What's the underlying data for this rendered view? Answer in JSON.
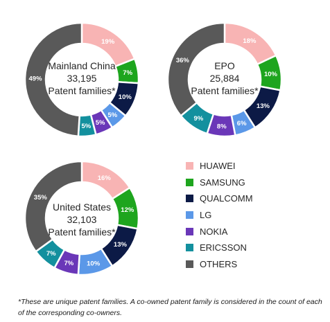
{
  "chart_data": [
    {
      "type": "pie",
      "title": "Mainland China",
      "total_value": "33,195",
      "total_unit": "Patent families*",
      "categories": [
        "HUAWEI",
        "SAMSUNG",
        "QUALCOMM",
        "LG",
        "NOKIA",
        "ERICSSON",
        "OTHERS"
      ],
      "values": [
        19,
        7,
        10,
        5,
        5,
        5,
        49
      ],
      "value_labels": [
        "19%",
        "7%",
        "10%",
        "5%",
        "5%",
        "5%",
        "49%"
      ]
    },
    {
      "type": "pie",
      "title": "EPO",
      "total_value": "25,884",
      "total_unit": "Patent families*",
      "categories": [
        "HUAWEI",
        "SAMSUNG",
        "QUALCOMM",
        "LG",
        "NOKIA",
        "ERICSSON",
        "OTHERS"
      ],
      "values": [
        18,
        10,
        13,
        6,
        8,
        9,
        36
      ],
      "value_labels": [
        "18%",
        "10%",
        "13%",
        "6%",
        "8%",
        "9%",
        "36%"
      ]
    },
    {
      "type": "pie",
      "title": "United States",
      "total_value": "32,103",
      "total_unit": "Patent families*",
      "categories": [
        "HUAWEI",
        "SAMSUNG",
        "QUALCOMM",
        "LG",
        "NOKIA",
        "ERICSSON",
        "OTHERS"
      ],
      "values": [
        16,
        12,
        13,
        10,
        7,
        7,
        35
      ],
      "value_labels": [
        "16%",
        "12%",
        "13%",
        "10%",
        "7%",
        "7%",
        "35%"
      ]
    }
  ],
  "legend": {
    "placement": "bottom-right",
    "items": [
      {
        "label": "HUAWEI",
        "color": "#f8b4b4"
      },
      {
        "label": "SAMSUNG",
        "color": "#1ea51e"
      },
      {
        "label": "QUALCOMM",
        "color": "#0c1a46"
      },
      {
        "label": "LG",
        "color": "#5b98e8"
      },
      {
        "label": "NOKIA",
        "color": "#6a37b8"
      },
      {
        "label": "ERICSSON",
        "color": "#13909e"
      },
      {
        "label": "OTHERS",
        "color": "#595959"
      }
    ]
  },
  "footnote": "*These are unique patent families. A co-owned patent family is considered in the count of each of the corresponding co-owners."
}
